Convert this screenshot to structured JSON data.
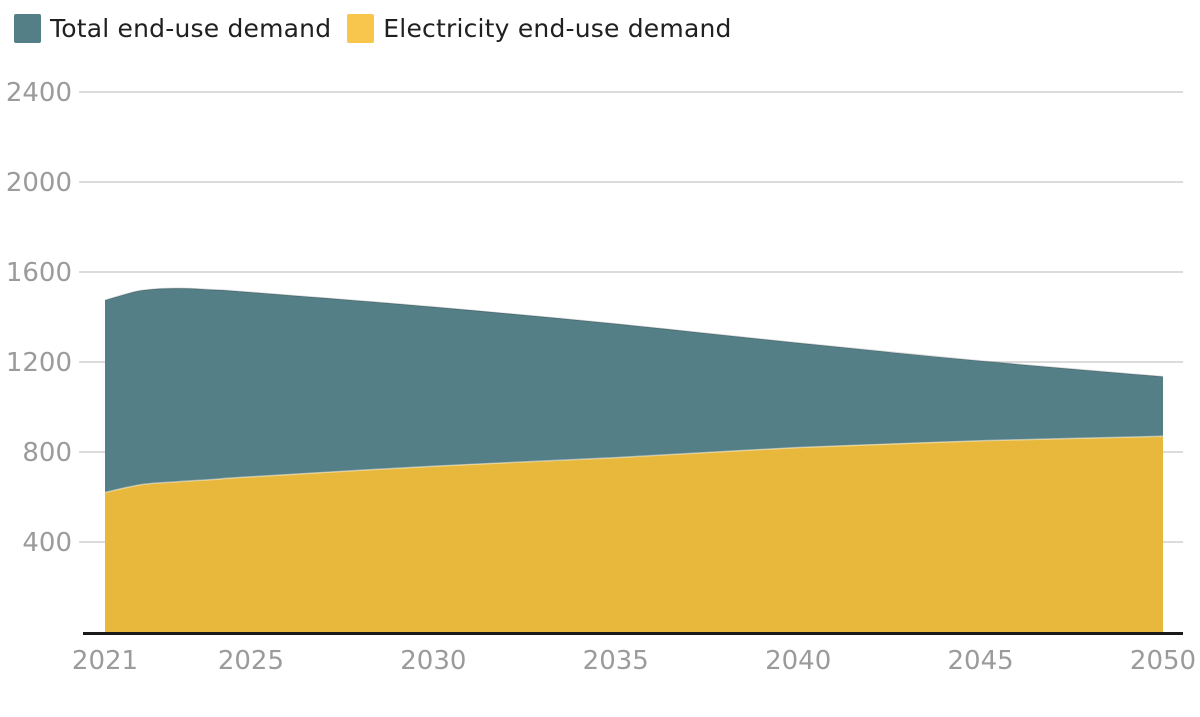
{
  "legend": {
    "items": [
      {
        "label": "Total end-use demand",
        "color": "#557f86"
      },
      {
        "label": "Electricity end-use demand",
        "color": "#f8c64c"
      }
    ]
  },
  "chart_data": {
    "type": "area",
    "title": "",
    "xlabel": "",
    "ylabel": "",
    "x": [
      2021,
      2022,
      2023,
      2024,
      2025,
      2030,
      2035,
      2040,
      2045,
      2050
    ],
    "series": [
      {
        "name": "Total end-use demand",
        "color": "#557f86",
        "values": [
          1475,
          1518,
          1528,
          1521,
          1510,
          1445,
          1370,
          1285,
          1205,
          1135
        ]
      },
      {
        "name": "Electricity end-use demand",
        "color": "#e8b83d",
        "values": [
          620,
          655,
          668,
          678,
          690,
          737,
          775,
          820,
          850,
          870
        ]
      }
    ],
    "xticks": [
      2021,
      2025,
      2030,
      2035,
      2040,
      2045,
      2050
    ],
    "yticks": [
      400,
      800,
      1200,
      1600,
      2000,
      2400
    ],
    "xlim": [
      2021,
      2050
    ],
    "ylim": [
      0,
      2550
    ],
    "grid": true,
    "legend_position": "top-left",
    "grid_color": "#c6c6c6",
    "axis_color": "#1a1a1a",
    "tick_label_color": "#9b9b9b"
  }
}
